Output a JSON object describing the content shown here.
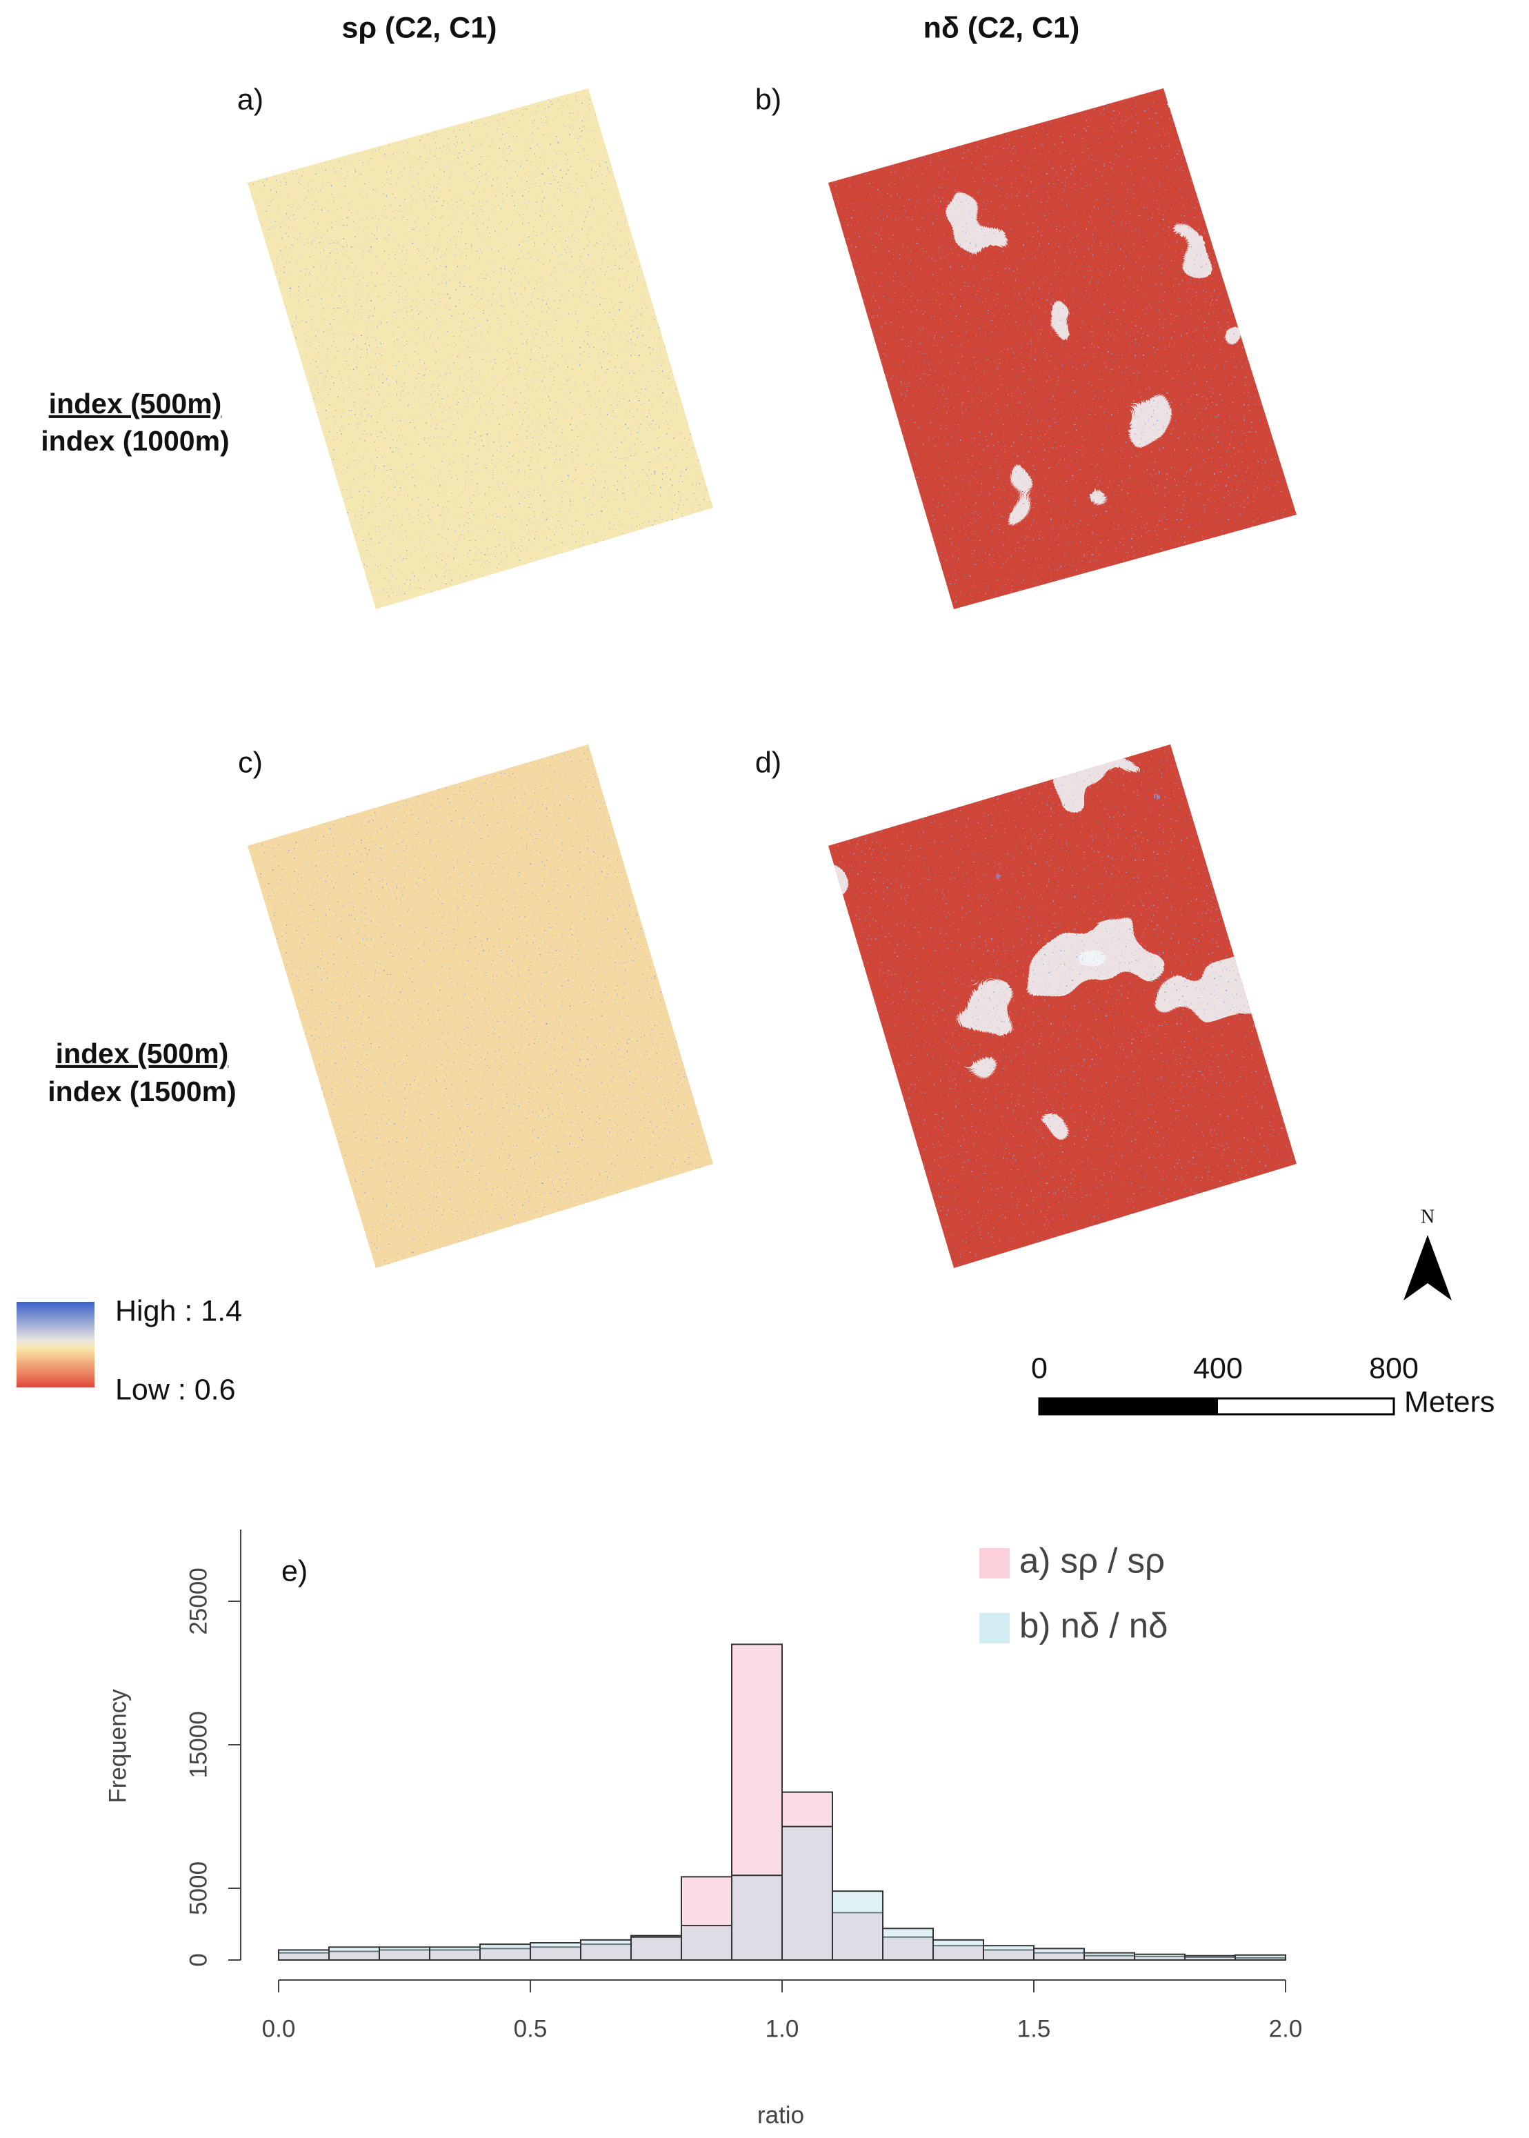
{
  "figure": {
    "column_titles": [
      "sρ (C2, C1)",
      "nδ (C2, C1)"
    ],
    "row_labels": [
      {
        "numerator": "index (500m)",
        "denominator": "index (1000m)"
      },
      {
        "numerator": "index (500m)",
        "denominator": "index (1500m)"
      }
    ],
    "panel_labels": [
      "a)",
      "b)",
      "c)",
      "d)"
    ],
    "legend": {
      "high": "High : 1.4",
      "low": "Low : 0.6"
    },
    "north": "N",
    "scale_bar": {
      "labels": [
        "0",
        "400",
        "800"
      ],
      "unit": "Meters"
    }
  },
  "chart_data": {
    "type": "histogram",
    "title": "e)",
    "x_label": "ratio",
    "y_label": "Frequency",
    "bins": [
      0.0,
      0.1,
      0.2,
      0.3,
      0.4,
      0.5,
      0.6,
      0.7,
      0.8,
      0.9,
      1.0,
      1.1,
      1.2,
      1.3,
      1.4,
      1.5,
      1.6,
      1.7,
      1.8,
      1.9,
      2.0
    ],
    "series": [
      {
        "name": "a) sρ / sρ",
        "color": "rgba(250,170,190,0.4)",
        "values": [
          500,
          600,
          700,
          700,
          800,
          900,
          1100,
          1700,
          5800,
          22000,
          11700,
          3300,
          1600,
          1000,
          700,
          500,
          300,
          250,
          200,
          150
        ]
      },
      {
        "name": "b) nδ / nδ",
        "color": "rgba(175,220,230,0.4)",
        "values": [
          700,
          900,
          900,
          900,
          1100,
          1200,
          1400,
          1600,
          2400,
          5900,
          9300,
          4800,
          2200,
          1400,
          1000,
          800,
          500,
          400,
          300,
          350
        ]
      }
    ],
    "xlim": [
      0,
      2
    ],
    "ylim": [
      0,
      30000
    ],
    "xticks": [
      {
        "value": 0,
        "label": "0.0"
      },
      0.5,
      {
        "value": 1,
        "label": "1.0"
      },
      1.5,
      {
        "value": 2,
        "label": "2.0"
      }
    ],
    "yticks": [
      0,
      5000,
      15000,
      25000
    ]
  }
}
